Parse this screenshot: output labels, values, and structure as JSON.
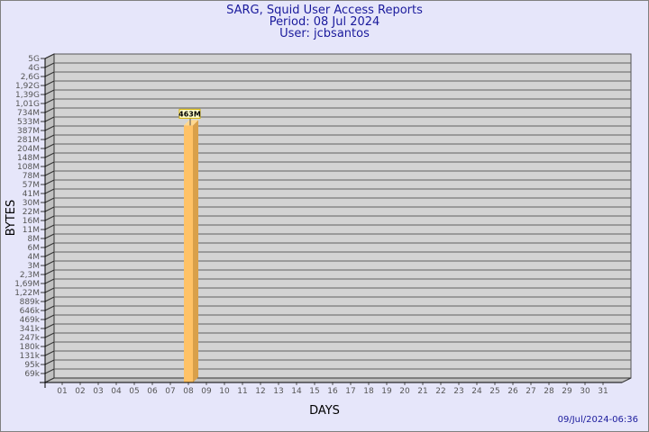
{
  "header": {
    "title": "SARG, Squid User Access Reports",
    "period": "Period: 08 Jul 2024",
    "user": "User: jcbsantos"
  },
  "footer": {
    "timestamp": "09/Jul/2024-06:36"
  },
  "chart_data": {
    "type": "bar",
    "title": "SARG, Squid User Access Reports",
    "xlabel": "DAYS",
    "ylabel": "BYTES",
    "y_scale": "log",
    "grid": true,
    "y_ticks": [
      "5G",
      "4G",
      "2,6G",
      "1,92G",
      "1,39G",
      "1,01G",
      "734M",
      "533M",
      "387M",
      "281M",
      "204M",
      "148M",
      "108M",
      "78M",
      "57M",
      "41M",
      "30M",
      "22M",
      "16M",
      "11M",
      "8M",
      "6M",
      "4M",
      "3M",
      "2,3M",
      "1,69M",
      "1,22M",
      "889k",
      "646k",
      "469k",
      "341k",
      "247k",
      "180k",
      "131k",
      "95k",
      "69k"
    ],
    "categories": [
      "01",
      "02",
      "03",
      "04",
      "05",
      "06",
      "07",
      "08",
      "09",
      "10",
      "11",
      "12",
      "13",
      "14",
      "15",
      "16",
      "17",
      "18",
      "19",
      "20",
      "21",
      "22",
      "23",
      "24",
      "25",
      "26",
      "27",
      "28",
      "29",
      "30",
      "31"
    ],
    "values": [
      null,
      null,
      null,
      null,
      null,
      null,
      null,
      463000000,
      null,
      null,
      null,
      null,
      null,
      null,
      null,
      null,
      null,
      null,
      null,
      null,
      null,
      null,
      null,
      null,
      null,
      null,
      null,
      null,
      null,
      null,
      null
    ],
    "data_labels": {
      "08": "463M"
    },
    "colors": {
      "bar": "#ffc266",
      "bar_side": "#d9a04a",
      "plot": "#d3d3d3",
      "title": "#1a1a9c"
    }
  }
}
